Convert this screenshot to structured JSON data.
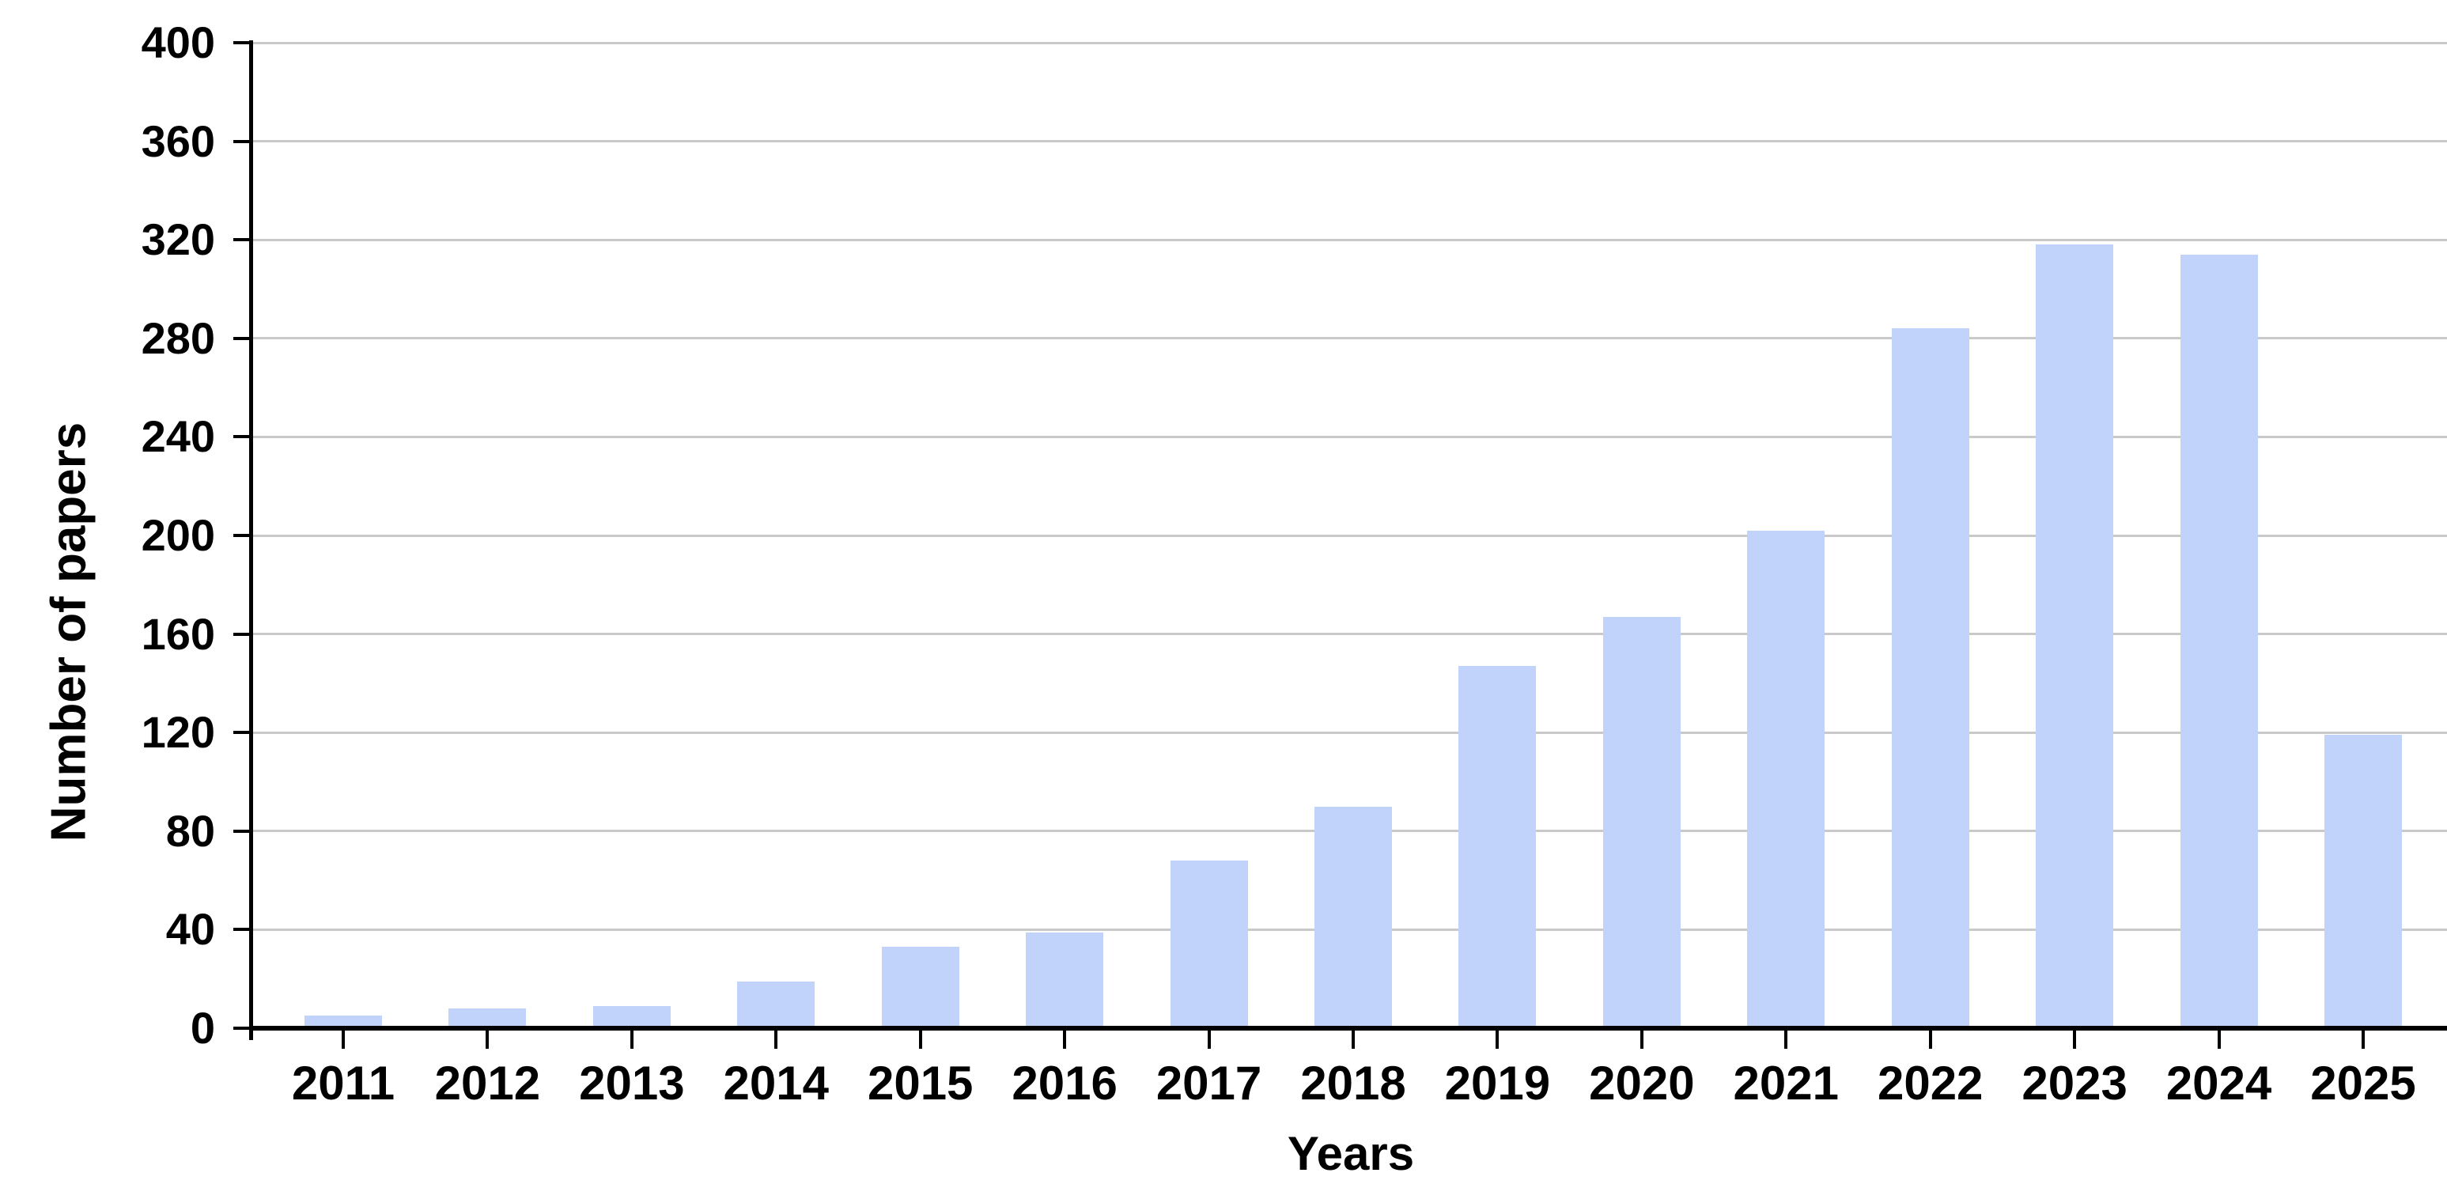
{
  "chart_data": {
    "type": "bar",
    "xlabel": "Years",
    "ylabel": "Number of papers",
    "categories": [
      "2011",
      "2012",
      "2013",
      "2014",
      "2015",
      "2016",
      "2017",
      "2018",
      "2019",
      "2020",
      "2021",
      "2022",
      "2023",
      "2024",
      "2025"
    ],
    "values": [
      5,
      8,
      9,
      19,
      33,
      39,
      68,
      90,
      147,
      167,
      202,
      284,
      318,
      314,
      119
    ],
    "ylim": [
      0,
      400
    ],
    "yticks": [
      0,
      40,
      80,
      120,
      160,
      200,
      240,
      280,
      320,
      360,
      400
    ],
    "grid": "horizontal",
    "legend": "none",
    "bar_color": "#c1d3fa",
    "gridline_color": "#c9c9c9",
    "axis_color": "#000000"
  }
}
